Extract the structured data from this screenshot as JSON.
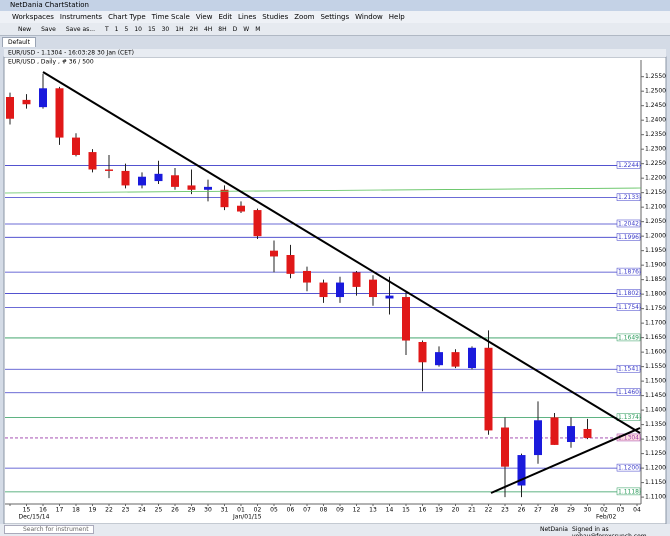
{
  "window_title": "NetDania ChartStation",
  "menu": [
    "Workspaces",
    "Instruments",
    "Chart Type",
    "Time Scale",
    "View",
    "Edit",
    "Lines",
    "Studies",
    "Zoom",
    "Settings",
    "Window",
    "Help"
  ],
  "toolbar": {
    "file": [
      "New",
      "Save",
      "Save as..."
    ],
    "intervals": [
      "T",
      "1",
      "5",
      "10",
      "15",
      "30",
      "1H",
      "2H",
      "4H",
      "8H",
      "D",
      "W",
      "M"
    ]
  },
  "tab": "Default",
  "chart_header": "EUR/USD - 1.1304 - 16:03:28 30 Jan (CET)",
  "chart_data": {
    "type": "candlestick",
    "title": "EUR/USD , Daily , # 36 / 500",
    "categories": [
      null,
      "15",
      "16",
      "17",
      "18",
      "19",
      "22",
      "23",
      "24",
      "25",
      "26",
      "29",
      "30",
      "31",
      "01",
      "02",
      "05",
      "06",
      "07",
      "08",
      "09",
      "12",
      "13",
      "14",
      "15",
      "16",
      "19",
      "20",
      "21",
      "22",
      "23",
      "26",
      "27",
      "28",
      "29",
      "30",
      "02",
      "03",
      "04"
    ],
    "period_labels": [
      {
        "at": 1,
        "label": "Dec/15/14"
      },
      {
        "at": 14,
        "label": "Jan/01/15"
      },
      {
        "at": 36,
        "label": "Feb/02"
      }
    ],
    "open": [
      1.248,
      1.247,
      1.2445,
      1.251,
      1.234,
      1.229,
      1.223,
      1.2225,
      1.2175,
      1.219,
      1.221,
      1.2175,
      1.216,
      1.216,
      1.2105,
      1.209,
      1.195,
      1.1935,
      1.188,
      1.184,
      1.179,
      1.1875,
      1.185,
      1.1785,
      1.179,
      1.1635,
      1.1555,
      1.16,
      1.1545,
      1.1615,
      1.134,
      1.114,
      1.1245,
      1.1375,
      1.129,
      1.1335,
      null,
      null,
      null
    ],
    "high": [
      1.2495,
      1.249,
      1.256,
      1.2515,
      1.2355,
      1.23,
      1.228,
      1.225,
      1.222,
      1.226,
      1.2235,
      1.223,
      1.2195,
      1.2175,
      1.212,
      1.2095,
      1.1985,
      1.197,
      1.1895,
      1.185,
      1.186,
      1.188,
      1.1865,
      1.186,
      1.181,
      1.164,
      1.162,
      1.161,
      1.162,
      1.1675,
      1.1375,
      1.125,
      1.143,
      1.139,
      1.1375,
      1.137,
      null,
      null,
      null
    ],
    "low": [
      1.2385,
      1.244,
      1.244,
      1.2315,
      1.2275,
      1.222,
      1.22,
      1.2165,
      1.2165,
      1.218,
      1.216,
      1.2145,
      1.212,
      1.209,
      1.208,
      1.199,
      1.1875,
      1.1855,
      1.181,
      1.177,
      1.177,
      1.1795,
      1.176,
      1.173,
      1.159,
      1.1465,
      1.155,
      1.1545,
      1.154,
      1.1315,
      1.11,
      1.11,
      1.1215,
      1.128,
      1.127,
      1.13,
      null,
      null,
      null
    ],
    "close": [
      1.2405,
      1.2455,
      1.251,
      1.234,
      1.228,
      1.223,
      1.2225,
      1.2175,
      1.2205,
      1.2215,
      1.217,
      1.216,
      1.217,
      1.21,
      1.2085,
      1.2,
      1.193,
      1.187,
      1.184,
      1.179,
      1.184,
      1.1825,
      1.179,
      1.1795,
      1.164,
      1.1565,
      1.16,
      1.155,
      1.1615,
      1.133,
      1.1205,
      1.1245,
      1.1365,
      1.128,
      1.1345,
      1.1304,
      null,
      null,
      null
    ],
    "up_color": "#1a1adc",
    "down_color": "#e01818",
    "ylim": [
      1.109,
      1.258
    ],
    "yticks": [
      {
        "value": 1.255,
        "label": "1.2550"
      },
      {
        "value": 1.25,
        "label": "1.2500"
      },
      {
        "value": 1.245,
        "label": "1.2450"
      },
      {
        "value": 1.24,
        "label": "1.2400"
      },
      {
        "value": 1.235,
        "label": "1.2350"
      },
      {
        "value": 1.23,
        "label": "1.2300"
      },
      {
        "value": 1.225,
        "label": "1.2250"
      },
      {
        "value": 1.22,
        "label": "1.2200"
      },
      {
        "value": 1.215,
        "label": "1.2150"
      },
      {
        "value": 1.21,
        "label": "1.2100"
      },
      {
        "value": 1.205,
        "label": "1.2050"
      },
      {
        "value": 1.2,
        "label": "1.2000"
      },
      {
        "value": 1.195,
        "label": "1.1950"
      },
      {
        "value": 1.19,
        "label": "1.1900"
      },
      {
        "value": 1.185,
        "label": "1.1850"
      },
      {
        "value": 1.18,
        "label": "1.1800"
      },
      {
        "value": 1.175,
        "label": "1.1750"
      },
      {
        "value": 1.17,
        "label": "1.1700"
      },
      {
        "value": 1.165,
        "label": "1.1650"
      },
      {
        "value": 1.16,
        "label": "1.1600"
      },
      {
        "value": 1.155,
        "label": "1.1550"
      },
      {
        "value": 1.15,
        "label": "1.1500"
      },
      {
        "value": 1.145,
        "label": "1.1450"
      },
      {
        "value": 1.14,
        "label": "1.1400"
      },
      {
        "value": 1.135,
        "label": "1.1350"
      },
      {
        "value": 1.13,
        "label": "1.1300"
      },
      {
        "value": 1.125,
        "label": "1.1250"
      },
      {
        "value": 1.12,
        "label": "1.1200"
      },
      {
        "value": 1.115,
        "label": "1.1150"
      },
      {
        "value": 1.11,
        "label": "1.1100"
      }
    ],
    "levels": [
      {
        "value": 1.2244,
        "color": "#3a3ac8"
      },
      {
        "value": 1.2133,
        "color": "#3a3ac8"
      },
      {
        "value": 1.2042,
        "color": "#3a3ac8"
      },
      {
        "value": 1.1996,
        "color": "#3a3ac8"
      },
      {
        "value": 1.1876,
        "color": "#3a3ac8"
      },
      {
        "value": 1.1802,
        "color": "#3a3ac8"
      },
      {
        "value": 1.1754,
        "color": "#3a3ac8"
      },
      {
        "value": 1.1649,
        "color": "#2a9a5a"
      },
      {
        "value": 1.1541,
        "color": "#3a3ac8"
      },
      {
        "value": {
          "value": 1.146,
          "label": "1.1460"
        },
        "color": "#3a3ac8"
      },
      {
        "value": 1.1374,
        "color": "#2a9a5a"
      },
      {
        "value": 1.1304,
        "color": "#9a3aa8",
        "current": true
      },
      {
        "value": {
          "value": 1.12,
          "label": "1.1200"
        },
        "color": "#3a3ac8"
      },
      {
        "value": 1.1118,
        "color": "#2a9a5a"
      }
    ]
  },
  "status_bar": {
    "search": "Search for instrument",
    "brand": "NetDania",
    "user": "Signed in as yohay@forexcrunch.com"
  }
}
